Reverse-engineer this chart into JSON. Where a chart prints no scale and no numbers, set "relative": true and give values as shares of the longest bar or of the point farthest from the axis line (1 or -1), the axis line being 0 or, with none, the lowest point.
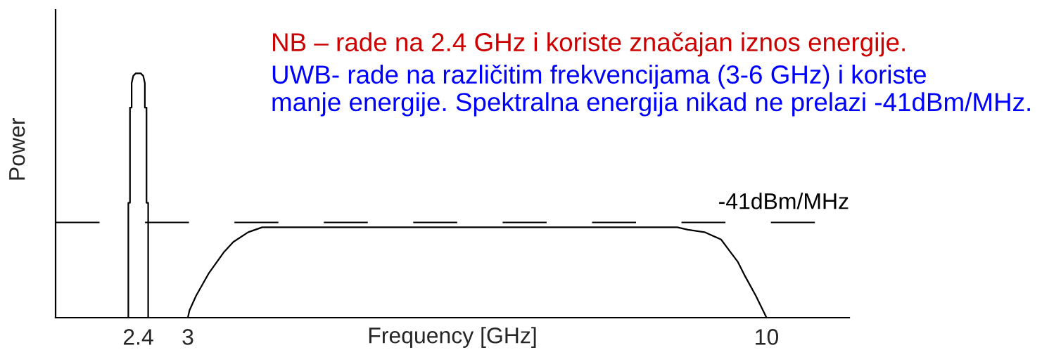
{
  "chart_data": {
    "type": "line",
    "title": "NB – rade na 2.4 GHz i koriste značajan iznos energije.",
    "subtitle": "UWB- rade na različitim frekvencijama (3-6 GHz) i koriste\nmanje energije. Spektralna energija nikad ne prelazi -41dBm/MHz.",
    "xlabel": "Frequency [GHz]",
    "ylabel": "Power",
    "relative": true,
    "xlim": [
      1.4,
      11
    ],
    "xticks": [
      2.4,
      3,
      10
    ],
    "tick_labels": "x",
    "series": [
      {
        "color": "#000000",
        "x": [
          2.28,
          2.28,
          2.3,
          2.3,
          2.32,
          2.32,
          2.34,
          2.37,
          2.4,
          2.43,
          2.46,
          2.48,
          2.48,
          2.5,
          2.5,
          2.52,
          2.52
        ],
        "values": [
          0,
          0.47,
          0.47,
          0.86,
          0.86,
          0.96,
          0.99,
          1,
          1,
          1,
          0.99,
          0.96,
          0.86,
          0.86,
          0.47,
          0.47,
          0
        ]
      },
      {
        "color": "#000000",
        "x": [
          3,
          3.02,
          3.1,
          3.25,
          3.44,
          3.55,
          3.73,
          3.9,
          4.04,
          8.92,
          9.05,
          9.25,
          9.45,
          9.56,
          9.65,
          9.74,
          9.87,
          10
        ],
        "values": [
          0,
          0.03,
          0.09,
          0.18,
          0.27,
          0.31,
          0.35,
          0.37,
          0.37,
          0.37,
          0.36,
          0.35,
          0.32,
          0.27,
          0.23,
          0.17,
          0.09,
          0
        ]
      }
    ],
    "ref_lines": [
      {
        "axis": "y",
        "value": 0.39,
        "label": "-41dBm/MHz",
        "color": "#000000",
        "line_style": "dashed"
      }
    ]
  }
}
